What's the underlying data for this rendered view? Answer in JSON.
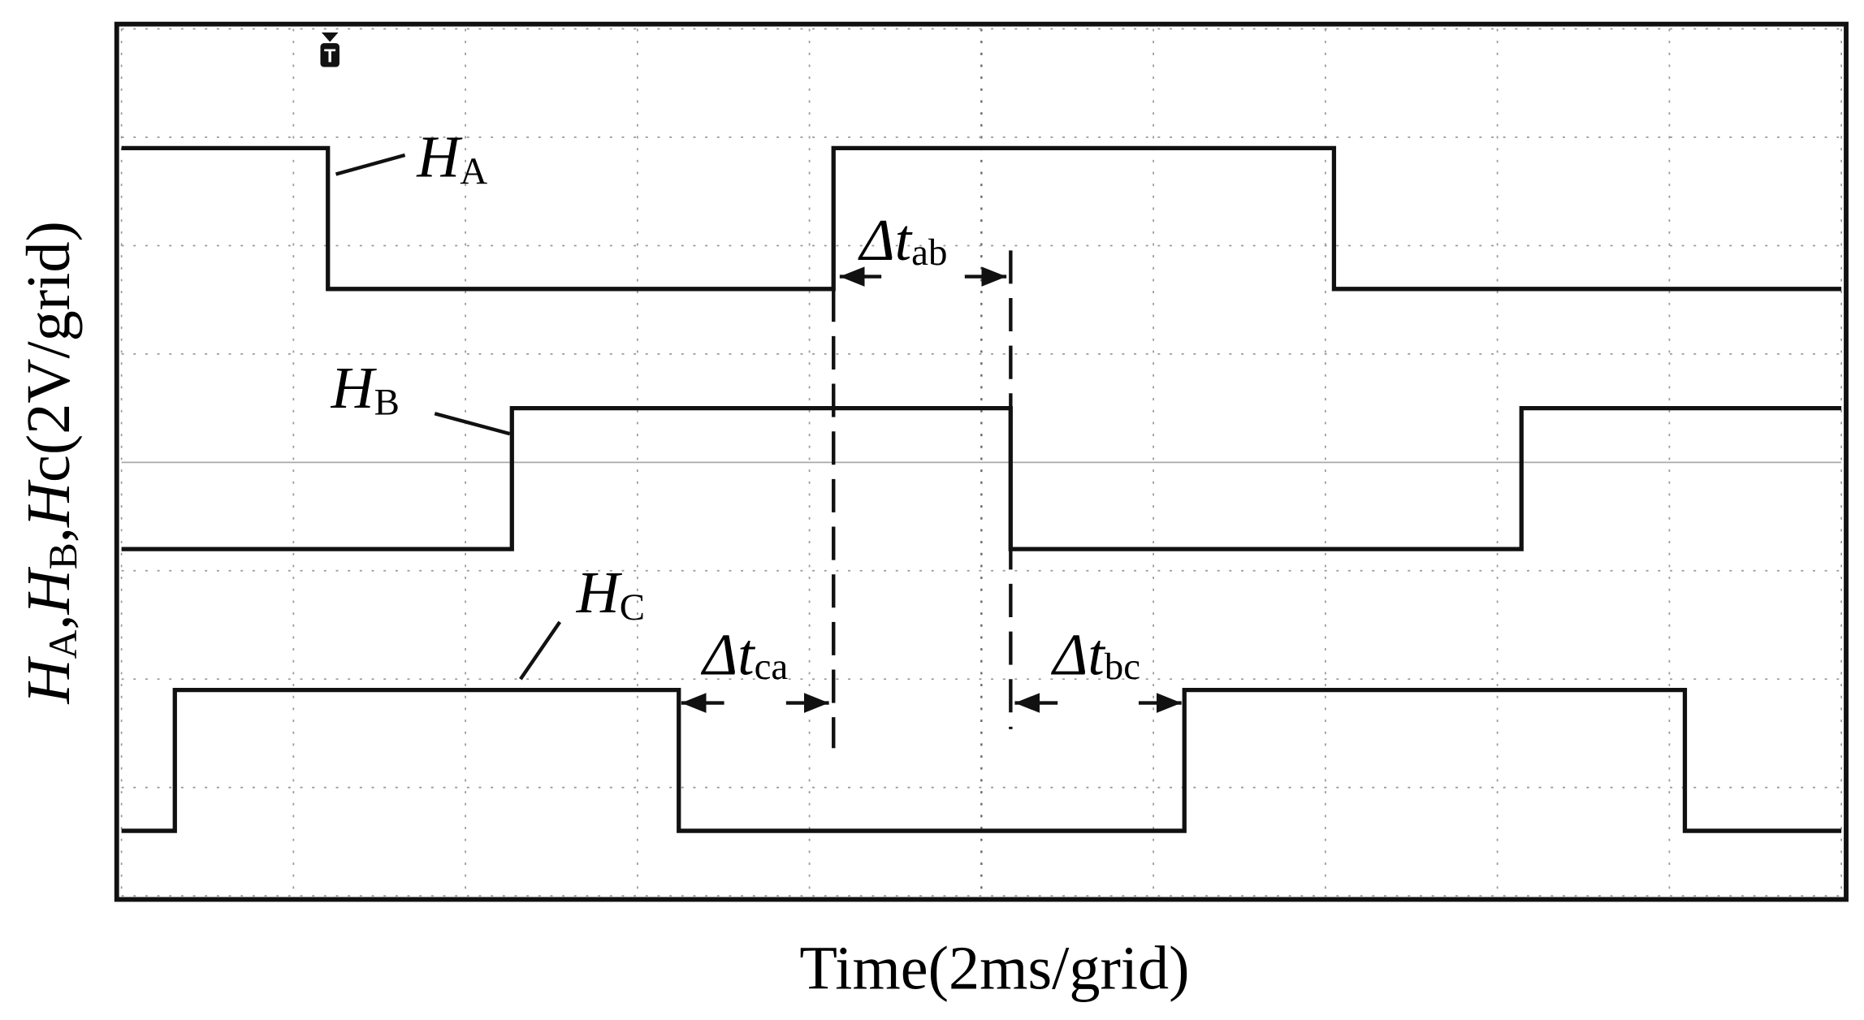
{
  "chart_data": {
    "type": "line",
    "step": true,
    "x_label": "Time(2ms/grid)",
    "y_label": [
      {
        "text": "H",
        "style": "italic"
      },
      {
        "text": "A",
        "style": "sub"
      },
      {
        "text": ","
      },
      {
        "text": "H",
        "style": "italic"
      },
      {
        "text": "B",
        "style": "sub"
      },
      {
        "text": ","
      },
      {
        "text": "H",
        "style": "italic"
      },
      {
        "text": "c"
      },
      {
        "text": "(2V/grid)"
      }
    ],
    "xlim": [
      0,
      10
    ],
    "ylim": [
      0,
      8
    ],
    "xticks": [
      0,
      1,
      2,
      3,
      4,
      5,
      6,
      7,
      8,
      9,
      10
    ],
    "yticks": [
      0,
      1,
      2,
      3,
      4,
      5,
      6,
      7,
      8
    ],
    "grid": true,
    "trigger_marker": "T",
    "series": [
      {
        "name": "H",
        "subscript": "A",
        "color": "#111111",
        "x": [
          0,
          1.2,
          1.2,
          4.14,
          4.14,
          7.05,
          7.05,
          10
        ],
        "values": [
          6.9,
          6.9,
          5.6,
          5.6,
          6.9,
          6.9,
          5.6,
          5.6
        ]
      },
      {
        "name": "H",
        "subscript": "B",
        "color": "#111111",
        "x": [
          0,
          2.27,
          2.27,
          5.17,
          5.17,
          8.14,
          8.14,
          10
        ],
        "values": [
          3.2,
          3.2,
          4.5,
          4.5,
          3.2,
          3.2,
          4.5,
          4.5
        ]
      },
      {
        "name": "H",
        "subscript": "C",
        "color": "#111111",
        "x": [
          0,
          0.31,
          0.31,
          3.24,
          3.24,
          6.18,
          6.18,
          9.09,
          9.09,
          10
        ],
        "values": [
          0.6,
          0.6,
          1.9,
          1.9,
          0.6,
          0.6,
          1.9,
          1.9,
          0.6,
          0.6
        ]
      }
    ],
    "annotations": [
      {
        "text": "Δt",
        "subscript": "ab"
      },
      {
        "text": "Δt",
        "subscript": "ca"
      },
      {
        "text": "Δt",
        "subscript": "bc"
      }
    ]
  }
}
